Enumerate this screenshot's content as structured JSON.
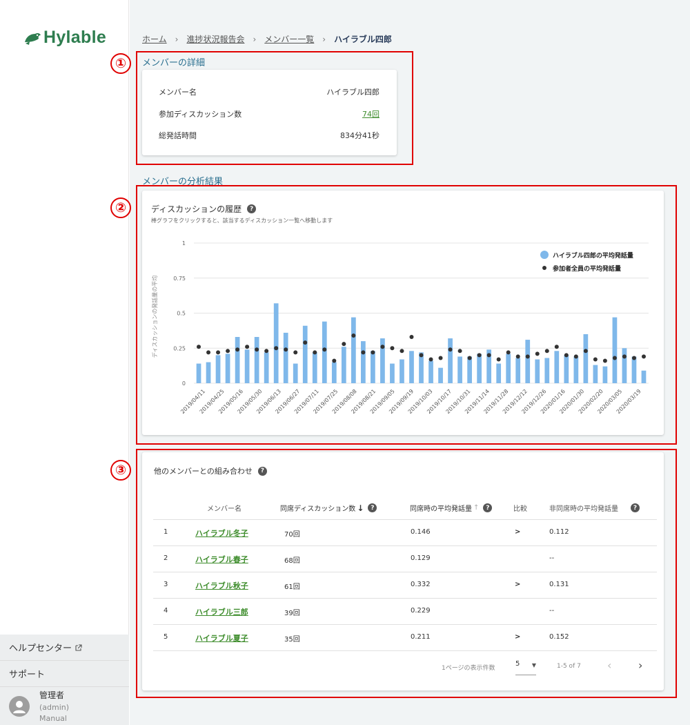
{
  "brand": {
    "name": "Hylable",
    "color": "#2e7d4f"
  },
  "sidebar": {
    "help_center": "ヘルプセンター",
    "support": "サポート",
    "user": {
      "name": "管理者",
      "id": "(admin)",
      "role": "Manual"
    }
  },
  "breadcrumb": [
    "ホーム",
    "進捗状況報告会",
    "メンバー一覧",
    "ハイラブル四郎"
  ],
  "markers": [
    "①",
    "②",
    "③"
  ],
  "details": {
    "title": "メンバーの詳細",
    "rows": [
      {
        "label": "メンバー名",
        "value": "ハイラブル四郎"
      },
      {
        "label": "参加ディスカッション数",
        "value": "74回"
      },
      {
        "label": "総発話時間",
        "value": "834分41秒"
      }
    ]
  },
  "analysis_title": "メンバーの分析結果",
  "history": {
    "title": "ディスカッションの履歴",
    "subtitle": "棒グラフをクリックすると、該当するディスカッション一覧へ移動します"
  },
  "chart_data": {
    "type": "bar",
    "ylabel": "ディスカッションの発話量の平均",
    "ylim": [
      0,
      1
    ],
    "yticks": [
      "0",
      "0.25",
      "0.5",
      "0.75",
      "1"
    ],
    "xticks": [
      "2019/04/11",
      "2019/04/25",
      "2019/05/16",
      "2019/05/30",
      "2019/06/13",
      "2019/06/27",
      "2019/07/11",
      "2019/07/25",
      "2019/08/08",
      "2019/08/21",
      "2019/09/05",
      "2019/09/19",
      "2019/10/03",
      "2019/10/17",
      "2019/10/31",
      "2019/11/14",
      "2019/11/28",
      "2019/12/12",
      "2019/12/26",
      "2020/01/16",
      "2020/01/30",
      "2020/02/20",
      "2020/03/05",
      "2020/03/19"
    ],
    "legend_position": "top-right",
    "grid": true,
    "series": [
      {
        "name": "ハイラブル四郎の平均発話量",
        "color": "#7fb8ea",
        "values": [
          0.14,
          0.15,
          0.2,
          0.21,
          0.33,
          0.24,
          0.33,
          0.22,
          0.57,
          0.36,
          0.14,
          0.41,
          0.22,
          0.44,
          0.15,
          0.26,
          0.47,
          0.3,
          0.23,
          0.32,
          0.14,
          0.17,
          0.23,
          0.22,
          0.16,
          0.11,
          0.32,
          0.19,
          0.19,
          0.21,
          0.24,
          0.14,
          0.21,
          0.18,
          0.31,
          0.17,
          0.18,
          0.23,
          0.2,
          0.19,
          0.35,
          0.13,
          0.12,
          0.47,
          0.25,
          0.19,
          0.09
        ]
      },
      {
        "name": "参加者全員の平均発話量",
        "color": "#333333",
        "values": [
          0.26,
          0.22,
          0.22,
          0.23,
          0.24,
          0.26,
          0.24,
          0.23,
          0.25,
          0.24,
          0.22,
          0.29,
          0.22,
          0.24,
          0.16,
          0.28,
          0.34,
          0.22,
          0.22,
          0.26,
          0.25,
          0.23,
          0.33,
          0.2,
          0.17,
          0.18,
          0.24,
          0.23,
          0.18,
          0.2,
          0.2,
          0.17,
          0.22,
          0.19,
          0.19,
          0.21,
          0.23,
          0.26,
          0.2,
          0.19,
          0.23,
          0.17,
          0.16,
          0.18,
          0.19,
          0.18,
          0.19
        ]
      }
    ]
  },
  "combo": {
    "title": "他のメンバーとの組み合わせ",
    "headers": {
      "name": "メンバー名",
      "count": "同席ディスカッション数",
      "avg_with": "同席時の平均発話量",
      "compare": "比較",
      "avg_without": "非同席時の平均発話量"
    },
    "rows": [
      {
        "rank": "1",
        "name": "ハイラブル冬子",
        "count": "70回",
        "avg_with": "0.146",
        "compare": ">",
        "avg_without": "0.112"
      },
      {
        "rank": "2",
        "name": "ハイラブル春子",
        "count": "68回",
        "avg_with": "0.129",
        "compare": "",
        "avg_without": "--"
      },
      {
        "rank": "3",
        "name": "ハイラブル秋子",
        "count": "61回",
        "avg_with": "0.332",
        "compare": ">",
        "avg_without": "0.131"
      },
      {
        "rank": "4",
        "name": "ハイラブル三郎",
        "count": "39回",
        "avg_with": "0.229",
        "compare": "",
        "avg_without": "--"
      },
      {
        "rank": "5",
        "name": "ハイラブル夏子",
        "count": "35回",
        "avg_with": "0.211",
        "compare": ">",
        "avg_without": "0.152"
      }
    ],
    "pagination": {
      "per_page_label": "1ページの表示件数",
      "per_page": "5",
      "range": "1-5 of 7"
    }
  }
}
